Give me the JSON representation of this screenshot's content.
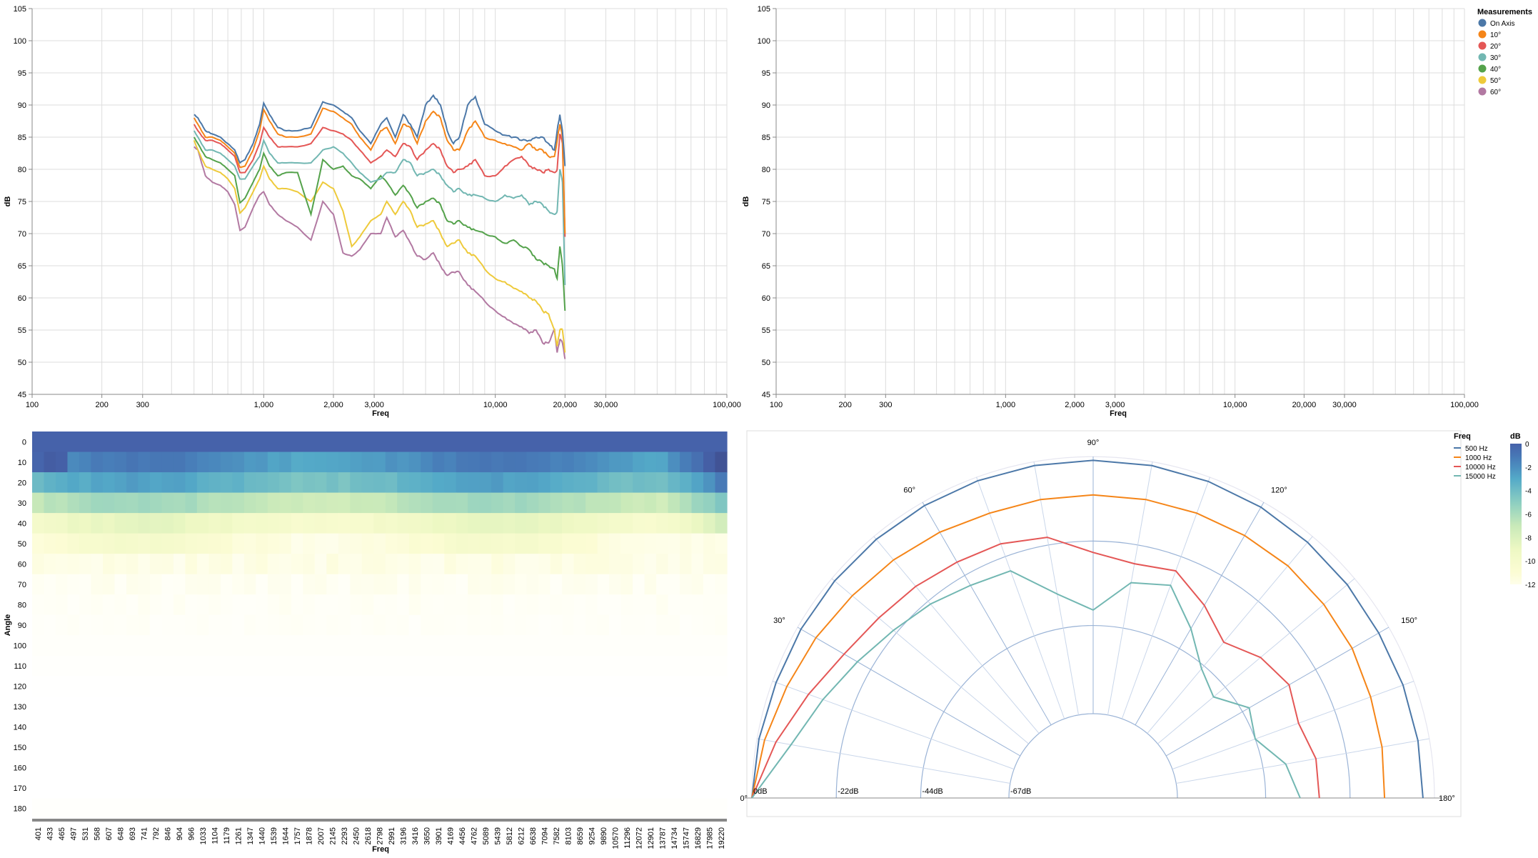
{
  "chart_data": [
    {
      "type": "line",
      "id": "freq-response",
      "xlabel": "Freq",
      "ylabel": "dB",
      "xscale": "log",
      "xlim": [
        100,
        100000
      ],
      "ylim": [
        45,
        105
      ],
      "yticks": [
        45,
        50,
        55,
        60,
        65,
        70,
        75,
        80,
        85,
        90,
        95,
        100,
        105
      ],
      "xtick_labels": [
        {
          "v": 100,
          "t": "100"
        },
        {
          "v": 200,
          "t": "200"
        },
        {
          "v": 300,
          "t": "300"
        },
        {
          "v": 1000,
          "t": "1,000"
        },
        {
          "v": 2000,
          "t": "2,000"
        },
        {
          "v": 3000,
          "t": "3,000"
        },
        {
          "v": 10000,
          "t": "10,000"
        },
        {
          "v": 20000,
          "t": "20,000"
        },
        {
          "v": 30000,
          "t": "30,000"
        },
        {
          "v": 100000,
          "t": "100,000"
        }
      ],
      "grid": true,
      "x": [
        500,
        520,
        560,
        600,
        650,
        700,
        750,
        790,
        830,
        900,
        960,
        1000,
        1060,
        1150,
        1250,
        1400,
        1600,
        1800,
        2000,
        2200,
        2400,
        2600,
        2900,
        3200,
        3400,
        3700,
        4000,
        4300,
        4600,
        5000,
        5400,
        5800,
        6200,
        6600,
        7000,
        7600,
        8200,
        9000,
        10000,
        11000,
        12000,
        13000,
        14000,
        15000,
        16000,
        17000,
        18000,
        18500,
        19000,
        19500,
        20000
      ],
      "series": [
        {
          "name": "On Axis",
          "color": "#4c78a8",
          "values": [
            88.5,
            88,
            86,
            85.5,
            85,
            84,
            83,
            81,
            81.5,
            84,
            87,
            90.3,
            88.5,
            86.5,
            86,
            86,
            86.5,
            90.5,
            90,
            89,
            88,
            86,
            84,
            87,
            88,
            85,
            88.5,
            87,
            85,
            90,
            91.5,
            90,
            86,
            84,
            85,
            90,
            91.3,
            87,
            86,
            85.3,
            85,
            84.5,
            84.5,
            85,
            85,
            84,
            83,
            86,
            88.5,
            86,
            80.5
          ]
        },
        {
          "name": "10°",
          "color": "#f58518",
          "values": [
            88,
            87,
            85,
            85,
            84.5,
            83.5,
            82.5,
            80.3,
            80.5,
            83,
            86,
            89.3,
            87.5,
            85.5,
            85,
            85,
            85.5,
            89.5,
            89,
            88,
            87,
            85,
            83,
            86,
            86.5,
            84,
            87,
            86.5,
            84,
            87.5,
            89,
            88,
            84.5,
            83,
            83,
            86,
            87.5,
            85,
            84.5,
            84,
            83.5,
            83,
            84,
            83,
            83,
            82,
            82,
            84.5,
            87,
            85,
            70
          ]
        },
        {
          "name": "20°",
          "color": "#e45756",
          "values": [
            87,
            86,
            84.5,
            84.5,
            84,
            83,
            82,
            79.5,
            79.5,
            81.5,
            84,
            86.5,
            85,
            83.5,
            83.5,
            83.5,
            84,
            86.5,
            86,
            85.5,
            84.5,
            83,
            81,
            82,
            83,
            82,
            84,
            83.5,
            81.5,
            83,
            84,
            83,
            80.5,
            79.5,
            80,
            80.5,
            81.5,
            79,
            79,
            80.5,
            81.5,
            82,
            80.5,
            80,
            79.5,
            80,
            79.5,
            80,
            85.5,
            84,
            69.5
          ]
        },
        {
          "name": "30°",
          "color": "#72b7b2",
          "values": [
            86,
            85,
            83,
            83,
            82.5,
            81.5,
            80.5,
            78.5,
            78.5,
            80.5,
            82,
            84.5,
            82.5,
            81,
            81,
            81,
            81,
            83,
            83.5,
            82.5,
            81,
            79.5,
            78,
            78.5,
            79.5,
            79.5,
            81.5,
            81,
            79,
            79.5,
            80,
            79,
            77.5,
            76.5,
            77,
            76,
            76,
            75.5,
            75,
            76,
            75.5,
            76,
            74.5,
            75,
            74.5,
            73.5,
            73,
            73.5,
            80,
            78,
            62
          ]
        },
        {
          "name": "40°",
          "color": "#54a24b",
          "values": [
            85,
            84,
            82,
            81.5,
            81,
            80,
            79,
            74.8,
            75.5,
            78,
            80,
            82.5,
            80.5,
            79,
            79.5,
            79.5,
            73,
            81.5,
            80,
            80.5,
            79,
            78.5,
            77,
            79,
            78,
            76,
            77.5,
            76,
            74,
            75,
            75.5,
            74.5,
            72,
            71.5,
            72,
            71,
            70.5,
            70,
            69.5,
            68.5,
            69,
            68,
            67.5,
            66,
            65.5,
            65,
            64.5,
            63,
            68,
            65,
            58
          ]
        },
        {
          "name": "50°",
          "color": "#eeca3b",
          "values": [
            84.5,
            83,
            80.5,
            80,
            79.5,
            78.5,
            77,
            73.2,
            74,
            76.5,
            78.5,
            80.5,
            78.5,
            77,
            77,
            76.5,
            75,
            78,
            77,
            73.5,
            68,
            69.5,
            72,
            73,
            75,
            73,
            75,
            73.5,
            71,
            71.5,
            72,
            70,
            68,
            68.5,
            69,
            67,
            66.5,
            64.5,
            63,
            62.5,
            61.5,
            61,
            60,
            59.5,
            58,
            57.5,
            55,
            52.5,
            55,
            55,
            51.5
          ]
        },
        {
          "name": "60°",
          "color": "#b279a2",
          "values": [
            83.5,
            83,
            79,
            78,
            77.5,
            76.5,
            74.5,
            70.5,
            71,
            74,
            76,
            76.5,
            74.5,
            73,
            72,
            71,
            69,
            75,
            73,
            67,
            66.5,
            67.5,
            70,
            70,
            72.5,
            69.5,
            70.5,
            68.5,
            66.5,
            66,
            67,
            65,
            63.5,
            64,
            64,
            62,
            61,
            59.5,
            58,
            57,
            56,
            55.5,
            54.5,
            55,
            53,
            53,
            55.2,
            51.5,
            53.5,
            53,
            50.5
          ]
        }
      ]
    },
    {
      "type": "line",
      "id": "freq-response-empty",
      "xlabel": "Freq",
      "ylabel": "dB",
      "xscale": "log",
      "xlim": [
        100,
        100000
      ],
      "ylim": [
        45,
        105
      ],
      "grid": true,
      "series": [],
      "legend": {
        "title": "Measurements",
        "placement": "top-right",
        "items": [
          {
            "label": "On Axis",
            "color": "#4c78a8"
          },
          {
            "label": "10°",
            "color": "#f58518"
          },
          {
            "label": "20°",
            "color": "#e45756"
          },
          {
            "label": "30°",
            "color": "#72b7b2"
          },
          {
            "label": "40°",
            "color": "#54a24b"
          },
          {
            "label": "50°",
            "color": "#eeca3b"
          },
          {
            "label": "60°",
            "color": "#b279a2"
          }
        ]
      }
    },
    {
      "type": "heatmap",
      "id": "directivity-heatmap",
      "xlabel": "Freq",
      "ylabel": "Angle",
      "x_categories": [
        "401",
        "433",
        "465",
        "497",
        "531",
        "568",
        "607",
        "648",
        "693",
        "741",
        "792",
        "846",
        "904",
        "966",
        "1033",
        "1104",
        "1179",
        "1261",
        "1347",
        "1440",
        "1539",
        "1644",
        "1757",
        "1878",
        "2007",
        "2145",
        "2293",
        "2450",
        "2618",
        "2798",
        "2991",
        "3196",
        "3416",
        "3650",
        "3901",
        "4169",
        "4456",
        "4762",
        "5089",
        "5439",
        "5812",
        "6212",
        "6638",
        "7094",
        "7582",
        "8103",
        "8659",
        "9254",
        "9890",
        "10570",
        "11296",
        "12072",
        "12901",
        "13787",
        "14734",
        "15747",
        "16829",
        "17985",
        "19220"
      ],
      "y_categories": [
        "0",
        "10",
        "20",
        "30",
        "40",
        "50",
        "60",
        "70",
        "80",
        "90",
        "100",
        "110",
        "120",
        "130",
        "140",
        "150",
        "160",
        "170",
        "180"
      ],
      "angle_db_levels": [
        0,
        -2,
        -3.5,
        -6.5,
        -9.5,
        -11,
        -11.8,
        -12.4,
        -12.7,
        -12.9,
        -13.2,
        -13.5,
        -13.8,
        -14,
        -14,
        -14,
        -14,
        -14,
        -13.5
      ],
      "high_freq_boost_start_index": 54,
      "color_domain": [
        -12,
        0
      ]
    },
    {
      "type": "line",
      "id": "polar-directivity",
      "subtype": "polar",
      "angle_labels": [
        "0°",
        "30°",
        "60°",
        "90°",
        "120°",
        "150°",
        "180°"
      ],
      "radius_labels": [
        "0dB",
        "-22dB",
        "-44dB",
        "-67dB"
      ],
      "legend": {
        "title": "Freq",
        "items": [
          {
            "label": "500 Hz",
            "color": "#4c78a8"
          },
          {
            "label": "1000 Hz",
            "color": "#f58518"
          },
          {
            "label": "10000 Hz",
            "color": "#e45756"
          },
          {
            "label": "15000 Hz",
            "color": "#72b7b2"
          }
        ]
      },
      "colorbar": {
        "title": "dB",
        "ticks": [
          "0",
          "-2",
          "-4",
          "-6",
          "-8",
          "-10",
          "-12"
        ],
        "domain": [
          -12,
          0
        ]
      },
      "angles": [
        0,
        10,
        20,
        30,
        40,
        50,
        60,
        70,
        80,
        90,
        100,
        110,
        120,
        130,
        140,
        150,
        160,
        170,
        180
      ],
      "series": [
        {
          "name": "500 Hz",
          "color": "#4c78a8",
          "values": [
            0,
            -0.5,
            -1,
            -1,
            -1,
            -1,
            -1,
            -1,
            -1,
            -1,
            -1,
            -1.2,
            -1.5,
            -2,
            -2.5,
            -3,
            -3,
            -3,
            -3
          ]
        },
        {
          "name": "1000 Hz",
          "color": "#f58518",
          "values": [
            0,
            -2,
            -4,
            -5.5,
            -7,
            -8,
            -9,
            -10,
            -10,
            -10,
            -10,
            -10,
            -10,
            -10,
            -10.5,
            -11,
            -12,
            -12.5,
            -13
          ]
        },
        {
          "name": "10000 Hz",
          "color": "#e45756",
          "values": [
            0,
            -5,
            -10,
            -14,
            -16,
            -17,
            -18,
            -18.5,
            -20,
            -25,
            -27,
            -26,
            -31,
            -36,
            -32,
            -30,
            -32,
            -30,
            -30
          ]
        },
        {
          "name": "15000 Hz",
          "color": "#72b7b2",
          "values": [
            0,
            -9,
            -14,
            -18,
            -21,
            -23,
            -25,
            -26,
            -35,
            -40,
            -32,
            -30,
            -38,
            -45,
            -48,
            -42,
            -44,
            -38,
            -35
          ]
        }
      ]
    }
  ]
}
